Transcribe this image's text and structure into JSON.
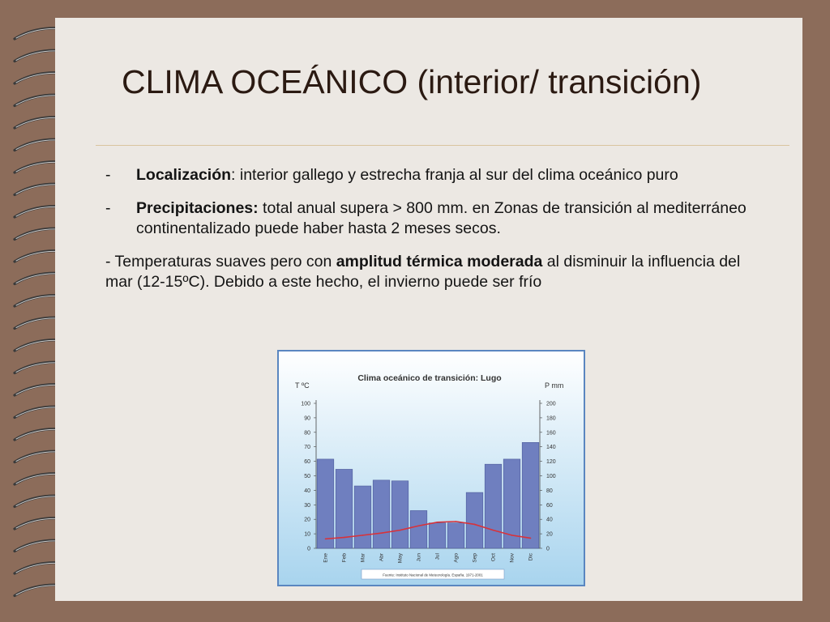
{
  "slide": {
    "title": "CLIMA OCEÁNICO (interior/ transición)",
    "bullet1": {
      "dash": "-",
      "label": "Localización",
      "text": ": interior gallego y estrecha franja al sur del clima oceánico puro"
    },
    "bullet2": {
      "dash": "-",
      "label": "Precipitaciones:",
      "text": " total anual supera > 800 mm. en Zonas de transición al mediterráneo continentalizado puede haber hasta 2 meses secos."
    },
    "bullet3": {
      "prefix": "- Temperaturas suaves pero con ",
      "bold": "amplitud térmica moderada",
      "suffix": " al disminuir la influencia del mar (12-15ºC). Debido a este hecho, el invierno puede ser frío"
    }
  },
  "chart_data": {
    "type": "bar",
    "title": "Clima oceánico de transición: Lugo",
    "ylabel_left": "T ºC",
    "ylabel_right": "P mm",
    "source": "Fuente: Instituto Nacional de Meteorología. España. 1971-2001",
    "categories": [
      "Ene",
      "Feb",
      "Mar",
      "Abr",
      "May",
      "Jun",
      "Jul",
      "Ago",
      "Sep",
      "Oct",
      "Nov",
      "Dic"
    ],
    "ylim_left": [
      0,
      100
    ],
    "ylim_right": [
      0,
      200
    ],
    "yticks_left": [
      0,
      10,
      20,
      30,
      40,
      50,
      60,
      70,
      80,
      90,
      100
    ],
    "yticks_right": [
      0,
      20,
      40,
      60,
      80,
      100,
      120,
      140,
      160,
      180,
      200
    ],
    "series": [
      {
        "name": "P mm",
        "type": "bar",
        "axis": "right",
        "color": "#6f7fbf",
        "values": [
          123,
          109,
          86,
          94,
          93,
          52,
          35,
          35,
          77,
          116,
          123,
          146
        ]
      },
      {
        "name": "T ºC",
        "type": "line",
        "axis": "left",
        "color": "#d8323a",
        "values": [
          6.5,
          7.5,
          9,
          10.5,
          12.5,
          15.5,
          18,
          18.5,
          16.5,
          12.5,
          9,
          7
        ]
      }
    ],
    "colors": {
      "background_top": "#ffffff",
      "background_bottom": "#a8d4ee",
      "frame": "#5a86c0"
    }
  }
}
